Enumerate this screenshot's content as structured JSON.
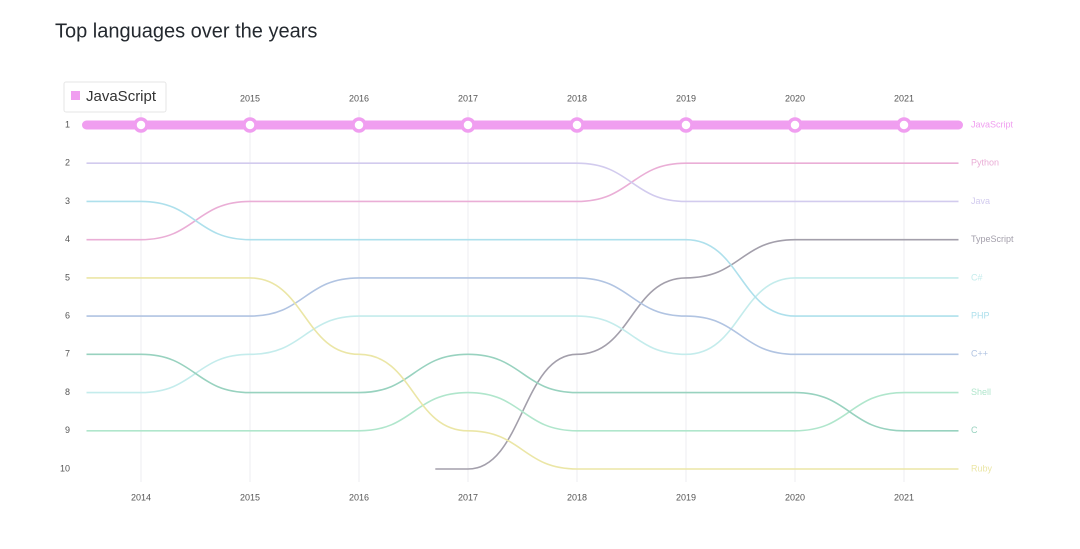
{
  "chart_data": {
    "type": "bump",
    "title": "Top languages over the years",
    "x": [
      2014,
      2015,
      2016,
      2017,
      2018,
      2019,
      2020,
      2021
    ],
    "xlim": [
      2013.5,
      2021.5
    ],
    "xticks": [
      2014,
      2015,
      2016,
      2017,
      2018,
      2019,
      2020,
      2021
    ],
    "ylim": [
      1,
      10
    ],
    "yticks": [
      1,
      2,
      3,
      4,
      5,
      6,
      7,
      8,
      9,
      10
    ],
    "y_inverted": true,
    "highlight": "JavaScript",
    "series": [
      {
        "name": "JavaScript",
        "color": "#f09ef0",
        "values": [
          1,
          1,
          1,
          1,
          1,
          1,
          1,
          1
        ]
      },
      {
        "name": "Python",
        "color": "#eaaed6",
        "values": [
          4,
          3,
          3,
          3,
          3,
          2,
          2,
          2
        ]
      },
      {
        "name": "Java",
        "color": "#d2cbee",
        "values": [
          2,
          2,
          2,
          2,
          2,
          3,
          3,
          3
        ]
      },
      {
        "name": "TypeScript",
        "color": "#a39fab",
        "values": [
          null,
          null,
          null,
          10,
          7,
          5,
          4,
          4
        ]
      },
      {
        "name": "C#",
        "color": "#c4ecec",
        "values": [
          8,
          7,
          6,
          6,
          6,
          7,
          5,
          5
        ]
      },
      {
        "name": "PHP",
        "color": "#aee0ec",
        "values": [
          3,
          4,
          4,
          4,
          4,
          4,
          6,
          6
        ]
      },
      {
        "name": "C++",
        "color": "#b1c4e2",
        "values": [
          6,
          6,
          5,
          5,
          5,
          6,
          7,
          7
        ]
      },
      {
        "name": "Shell",
        "color": "#b0e6cc",
        "values": [
          9,
          9,
          9,
          8,
          9,
          9,
          9,
          8
        ]
      },
      {
        "name": "C",
        "color": "#98d2bf",
        "values": [
          7,
          8,
          8,
          7,
          8,
          8,
          8,
          9
        ]
      },
      {
        "name": "Ruby",
        "color": "#ebe6a6",
        "values": [
          5,
          5,
          7,
          9,
          10,
          10,
          10,
          10
        ]
      }
    ]
  }
}
